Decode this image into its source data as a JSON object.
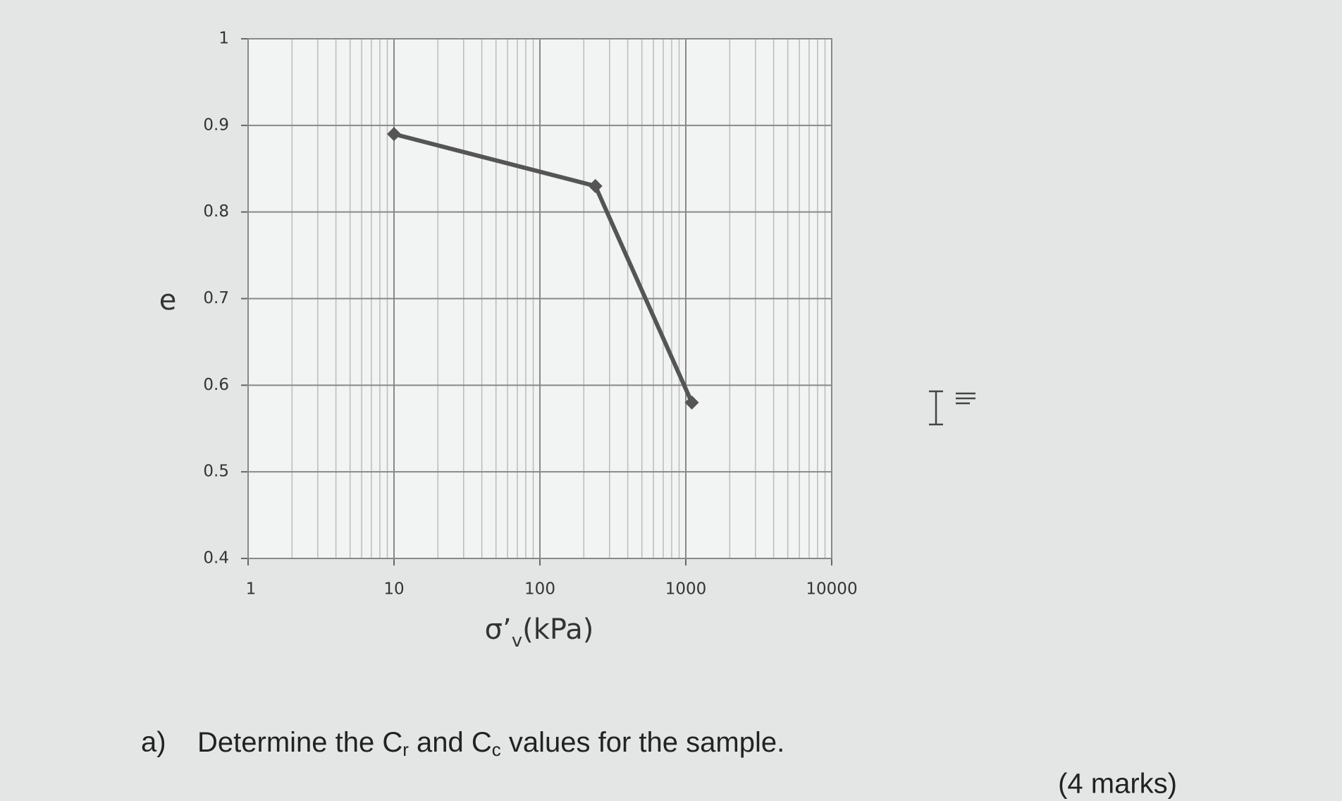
{
  "chart_data": {
    "type": "line",
    "y_label": "e",
    "x_label": [
      "σ’",
      "v",
      "(kPa)"
    ],
    "x": [
      10,
      240,
      1100
    ],
    "series": [
      {
        "color": "#555555",
        "values": [
          0.89,
          0.83,
          0.58
        ]
      }
    ],
    "xlim": [
      1,
      10000
    ],
    "xticks": [
      1,
      10,
      100,
      1000,
      10000
    ],
    "log_x": true,
    "ylim": [
      0.4,
      1
    ],
    "yticks": [
      0.4,
      0.5,
      0.6,
      0.7,
      0.8,
      0.9,
      1
    ],
    "grid": true,
    "minor_grid": true
  },
  "question": {
    "label": "a)",
    "text": [
      "Determine the C",
      "r",
      " and C",
      "c",
      " values for the sample."
    ],
    "marks": "(4 marks)"
  }
}
